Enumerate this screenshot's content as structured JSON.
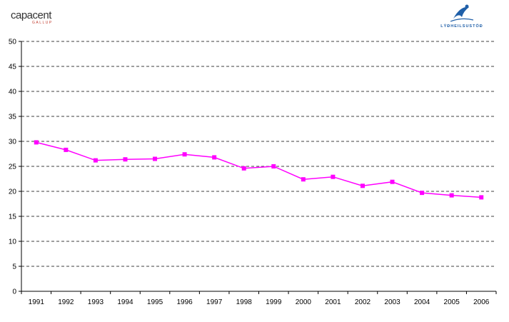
{
  "logos": {
    "left_brand": "capacent",
    "left_sub": "GALLUP",
    "right_name": "LÝÐHEILSUSTÖÐ"
  },
  "colors": {
    "series": "#ff00ff",
    "grid": "#000000",
    "axis": "#000000"
  },
  "chart_data": {
    "type": "line",
    "title": "",
    "xlabel": "",
    "ylabel": "",
    "ylim": [
      0,
      50
    ],
    "yticks": [
      0,
      5,
      10,
      15,
      20,
      25,
      30,
      35,
      40,
      45,
      50
    ],
    "grid": true,
    "grid_style": "dashed",
    "categories": [
      "1991",
      "1992",
      "1993",
      "1994",
      "1995",
      "1996",
      "1997",
      "1998",
      "1999",
      "2000",
      "2001",
      "2002",
      "2003",
      "2004",
      "2005",
      "2006"
    ],
    "series": [
      {
        "values": [
          29.8,
          28.3,
          26.2,
          26.4,
          26.5,
          27.4,
          26.8,
          24.6,
          25.0,
          22.4,
          22.9,
          21.1,
          21.9,
          19.7,
          19.2,
          18.8
        ]
      }
    ]
  }
}
